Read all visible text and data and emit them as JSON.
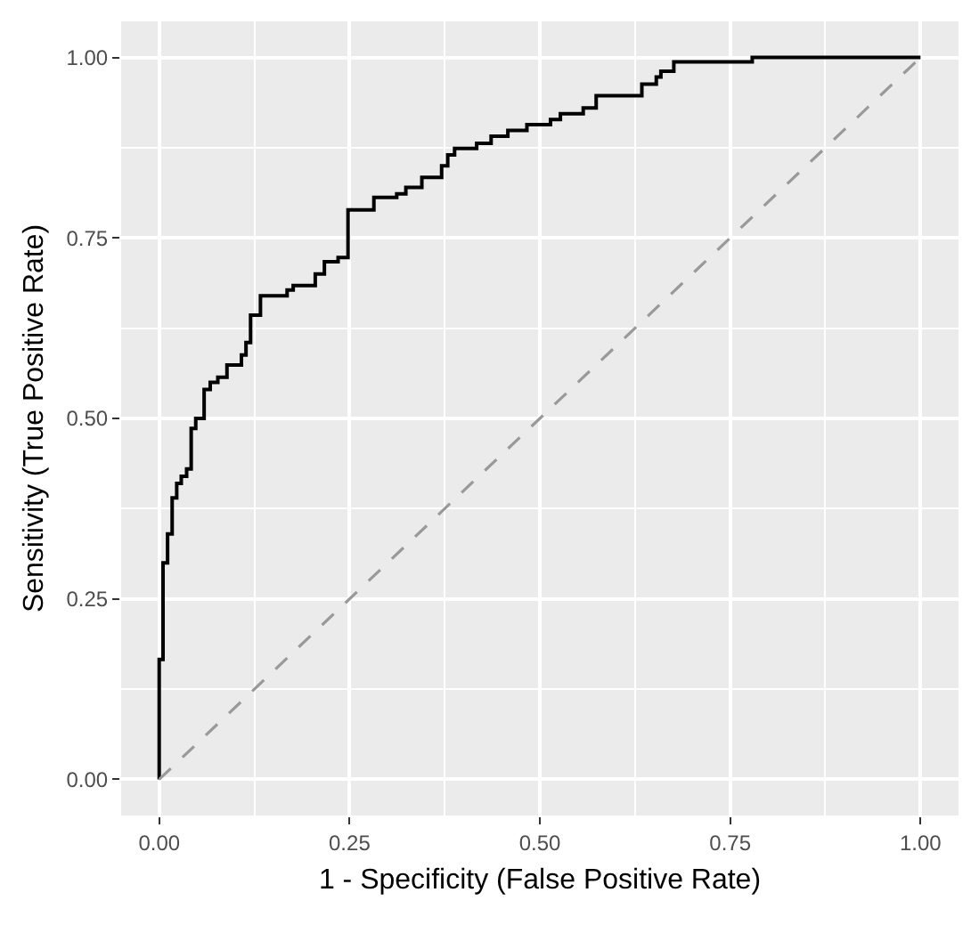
{
  "chart_data": {
    "type": "step",
    "xlabel": "1 - Specificity (False Positive Rate)",
    "ylabel": "Sensitivity (True Positive Rate)",
    "xlim": [
      -0.05,
      1.05
    ],
    "ylim": [
      -0.05,
      1.05
    ],
    "xticks": [
      {
        "value": 0,
        "label": "0.00"
      },
      {
        "value": 0.25,
        "label": "0.25"
      },
      {
        "value": 0.5,
        "label": "0.50"
      },
      {
        "value": 0.75,
        "label": "0.75"
      },
      {
        "value": 1,
        "label": "1.00"
      }
    ],
    "yticks": [
      {
        "value": 0,
        "label": "0.00"
      },
      {
        "value": 0.25,
        "label": "0.25"
      },
      {
        "value": 0.5,
        "label": "0.50"
      },
      {
        "value": 0.75,
        "label": "0.75"
      },
      {
        "value": 1,
        "label": "1.00"
      }
    ],
    "grid": true,
    "series": [
      {
        "color": "#000000",
        "line_style": "solid",
        "x": [
          0,
          0,
          0.005,
          0.011,
          0.017,
          0.023,
          0.029,
          0.036,
          0.042,
          0.048,
          0.059,
          0.067,
          0.077,
          0.089,
          0.108,
          0.114,
          0.12,
          0.133,
          0.168,
          0.176,
          0.205,
          0.217,
          0.235,
          0.248,
          0.282,
          0.312,
          0.324,
          0.345,
          0.371,
          0.379,
          0.388,
          0.417,
          0.436,
          0.458,
          0.483,
          0.514,
          0.527,
          0.557,
          0.574,
          0.634,
          0.653,
          0.659,
          0.676,
          0.779,
          1.0
        ],
        "values": [
          0,
          0.166,
          0.3,
          0.34,
          0.39,
          0.41,
          0.42,
          0.43,
          0.486,
          0.5,
          0.54,
          0.55,
          0.557,
          0.574,
          0.588,
          0.605,
          0.643,
          0.67,
          0.678,
          0.684,
          0.7,
          0.717,
          0.723,
          0.789,
          0.806,
          0.811,
          0.82,
          0.834,
          0.85,
          0.865,
          0.874,
          0.881,
          0.891,
          0.899,
          0.907,
          0.914,
          0.922,
          0.93,
          0.947,
          0.963,
          0.973,
          0.981,
          0.994,
          1.0,
          1.0
        ]
      },
      {
        "type": "line",
        "color": "#999999",
        "line_style": "dashed",
        "x": [
          0,
          1
        ],
        "values": [
          0,
          1
        ]
      }
    ]
  }
}
